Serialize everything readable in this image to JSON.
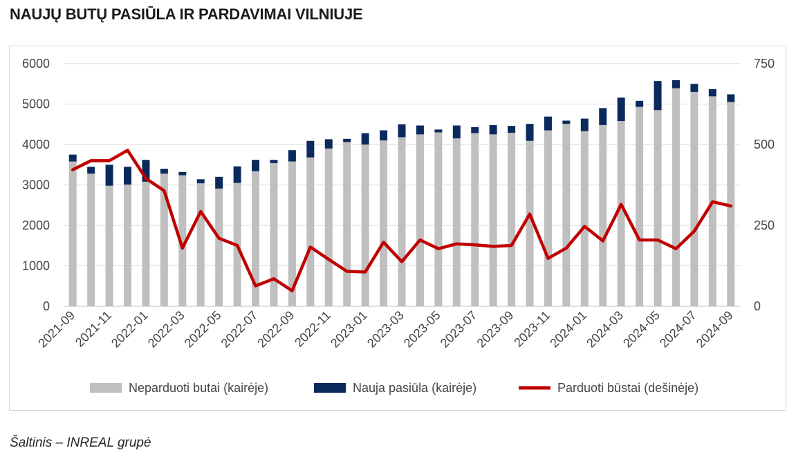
{
  "title": "NAUJŲ BUTŲ PASIŪLA IR PARDAVIMAI VILNIUJE",
  "source": "Šaltinis – INREAL grupė",
  "colors": {
    "unsold": "#bfbfbf",
    "new_supply": "#0b2a5c",
    "sold": "#c00000",
    "grid": "#d9d9d9"
  },
  "chart_data": {
    "type": "bar",
    "stacked": true,
    "grid": true,
    "legend_position": "bottom",
    "y_left": {
      "min": 0,
      "max": 6000,
      "ticks": [
        "0",
        "1000",
        "2000",
        "3000",
        "4000",
        "5000",
        "6000"
      ]
    },
    "y_right": {
      "min": 0,
      "max": 750,
      "ticks": [
        "0",
        "250",
        "500",
        "750"
      ]
    },
    "x_tick_labels": [
      "2021-09",
      "2021-11",
      "2022-01",
      "2022-03",
      "2022-05",
      "2022-07",
      "2022-09",
      "2022-11",
      "2023-01",
      "2023-03",
      "2023-05",
      "2023-07",
      "2023-09",
      "2023-11",
      "2024-01",
      "2024-03",
      "2024-05",
      "2024-07",
      "2024-09"
    ],
    "categories": [
      "2021-09",
      "2021-10",
      "2021-11",
      "2021-12",
      "2022-01",
      "2022-02",
      "2022-03",
      "2022-04",
      "2022-05",
      "2022-06",
      "2022-07",
      "2022-08",
      "2022-09",
      "2022-10",
      "2022-11",
      "2022-12",
      "2023-01",
      "2023-02",
      "2023-03",
      "2023-04",
      "2023-05",
      "2023-06",
      "2023-07",
      "2023-08",
      "2023-09",
      "2023-10",
      "2023-11",
      "2023-12",
      "2024-01",
      "2024-02",
      "2024-03",
      "2024-04",
      "2024-05",
      "2024-06",
      "2024-07",
      "2024-08",
      "2024-09"
    ],
    "series": [
      {
        "name": "Neparduoti butai (kairėje)",
        "axis": "left",
        "kind": "bar",
        "values": [
          3580,
          3280,
          2980,
          3010,
          3080,
          3280,
          3240,
          3040,
          2910,
          3050,
          3340,
          3540,
          3580,
          3680,
          3900,
          4060,
          4000,
          4100,
          4180,
          4250,
          4300,
          4150,
          4280,
          4250,
          4290,
          4090,
          4350,
          4510,
          4330,
          4480,
          4580,
          4930,
          4850,
          5390,
          5300,
          5190,
          5050
        ]
      },
      {
        "name": "Nauja pasiūla (kairėje)",
        "axis": "left",
        "kind": "bar",
        "values": [
          170,
          170,
          520,
          440,
          540,
          120,
          80,
          100,
          290,
          410,
          280,
          80,
          280,
          410,
          230,
          80,
          280,
          250,
          320,
          220,
          70,
          320,
          150,
          230,
          170,
          420,
          340,
          80,
          310,
          420,
          580,
          150,
          720,
          200,
          200,
          180,
          190
        ]
      },
      {
        "name": "Parduoti būstai (dešinėje)",
        "axis": "right",
        "kind": "line",
        "values": [
          422,
          450,
          450,
          482,
          395,
          357,
          180,
          293,
          210,
          188,
          63,
          85,
          48,
          183,
          145,
          108,
          106,
          198,
          138,
          205,
          178,
          193,
          190,
          185,
          188,
          285,
          148,
          180,
          247,
          202,
          315,
          205,
          205,
          178,
          232,
          323,
          310
        ]
      }
    ]
  }
}
